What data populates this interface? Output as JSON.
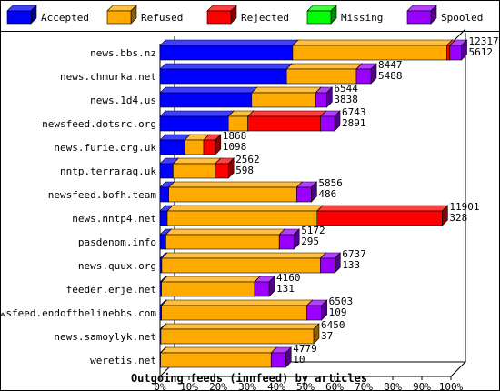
{
  "chart_data": {
    "type": "bar",
    "orientation": "horizontal",
    "stacked": true,
    "percent_scale": true,
    "title": "",
    "xlabel": "Outgoing feeds (innfeed) by articles",
    "ylabel": "",
    "xlim": [
      0,
      100
    ],
    "x_ticks": [
      "0%",
      "10%",
      "20%",
      "30%",
      "40%",
      "50%",
      "60%",
      "70%",
      "80%",
      "90%",
      "100%"
    ],
    "grid": false,
    "legend_position": "top",
    "categories": [
      "news.bbs.nz",
      "news.chmurka.net",
      "news.1d4.us",
      "newsfeed.dotsrc.org",
      "news.furie.org.uk",
      "nntp.terraraq.uk",
      "newsfeed.bofh.team",
      "news.nntp4.net",
      "pasdenom.info",
      "news.quux.org",
      "feeder.erje.net",
      "newsfeed.endofthelinebbs.com",
      "news.samoylyk.net",
      "weretis.net"
    ],
    "series": [
      {
        "name": "Accepted",
        "color": "#0000ff",
        "values": [
          45.6,
          43.5,
          31.5,
          23.5,
          8.5,
          4.5,
          3.0,
          2.5,
          2.0,
          0.6,
          0.5,
          0.5,
          0.3,
          0.2
        ]
      },
      {
        "name": "Refused",
        "color": "#ffaa00",
        "values": [
          53.0,
          24.0,
          22.0,
          6.7,
          6.5,
          14.5,
          44.0,
          51.5,
          39.0,
          54.5,
          32.0,
          50.0,
          52.5,
          38.0
        ]
      },
      {
        "name": "Rejected",
        "color": "#ff0000",
        "values": [
          1.0,
          0.0,
          0.0,
          25.0,
          4.0,
          4.5,
          0.0,
          43.0,
          0.0,
          0.0,
          0.0,
          0.0,
          0.0,
          0.0
        ]
      },
      {
        "name": "Missing",
        "color": "#00ff00",
        "values": [
          0,
          0,
          0,
          0,
          0,
          0,
          0,
          0,
          0,
          0,
          0,
          0,
          0,
          0
        ]
      },
      {
        "name": "Spooled",
        "color": "#9900ff",
        "values": [
          4.0,
          5.0,
          3.8,
          4.8,
          0.0,
          0.0,
          5.0,
          0.0,
          5.0,
          5.0,
          5.0,
          5.0,
          0.0,
          5.0
        ]
      }
    ],
    "offered_labels": [
      "12317",
      "8447",
      "6544",
      "6743",
      "1868",
      "2562",
      "5856",
      "11901",
      "5172",
      "6737",
      "4160",
      "6503",
      "6450",
      "4779"
    ],
    "accepted_labels": [
      "5612",
      "5488",
      "3838",
      "2891",
      "1098",
      "598",
      "486",
      "328",
      "295",
      "133",
      "131",
      "109",
      "37",
      "10"
    ]
  }
}
